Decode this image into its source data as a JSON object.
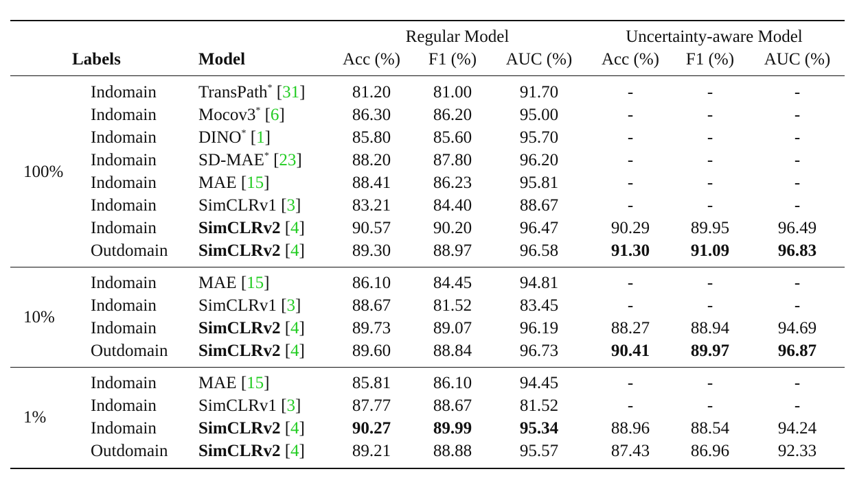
{
  "header": {
    "group1": "Regular Model",
    "group2": "Uncertainty-aware Model",
    "labels": "Labels",
    "model": "Model",
    "acc": "Acc (%)",
    "f1": "F1 (%)",
    "auc": "AUC (%)"
  },
  "sections": [
    {
      "label": "100%",
      "rows": [
        {
          "domain": "Indomain",
          "model": "TransPath",
          "star": "*",
          "cite": "31",
          "model_bold": false,
          "acc1": "81.20",
          "f11": "81.00",
          "auc1": "91.70",
          "acc2": "-",
          "f12": "-",
          "auc2": "-"
        },
        {
          "domain": "Indomain",
          "model": "Mocov3",
          "star": "*",
          "cite": "6",
          "model_bold": false,
          "acc1": "86.30",
          "f11": "86.20",
          "auc1": "95.00",
          "acc2": "-",
          "f12": "-",
          "auc2": "-"
        },
        {
          "domain": "Indomain",
          "model": "DINO",
          "star": "*",
          "cite": "1",
          "model_bold": false,
          "acc1": "85.80",
          "f11": "85.60",
          "auc1": "95.70",
          "acc2": "-",
          "f12": "-",
          "auc2": "-"
        },
        {
          "domain": "Indomain",
          "model": "SD-MAE",
          "star": "*",
          "cite": "23",
          "model_bold": false,
          "acc1": "88.20",
          "f11": "87.80",
          "auc1": "96.20",
          "acc2": "-",
          "f12": "-",
          "auc2": "-"
        },
        {
          "domain": "Indomain",
          "model": "MAE",
          "star": "",
          "cite": "15",
          "model_bold": false,
          "acc1": "88.41",
          "f11": "86.23",
          "auc1": "95.81",
          "acc2": "-",
          "f12": "-",
          "auc2": "-"
        },
        {
          "domain": "Indomain",
          "model": "SimCLRv1",
          "star": "",
          "cite": "3",
          "model_bold": false,
          "acc1": "83.21",
          "f11": "84.40",
          "auc1": "88.67",
          "acc2": "-",
          "f12": "-",
          "auc2": "-"
        },
        {
          "domain": "Indomain",
          "model": "SimCLRv2",
          "star": "",
          "cite": "4",
          "model_bold": true,
          "acc1": "90.57",
          "f11": "90.20",
          "auc1": "96.47",
          "acc2": "90.29",
          "f12": "89.95",
          "auc2": "96.49"
        },
        {
          "domain": "Outdomain",
          "model": "SimCLRv2",
          "star": "",
          "cite": "4",
          "model_bold": true,
          "acc1": "89.30",
          "f11": "88.97",
          "auc1": "96.58",
          "acc2": "91.30",
          "f12": "91.09",
          "auc2": "96.83",
          "bold_cells": [
            "acc2",
            "f12",
            "auc2"
          ]
        }
      ]
    },
    {
      "label": "10%",
      "rows": [
        {
          "domain": "Indomain",
          "model": "MAE",
          "star": "",
          "cite": "15",
          "model_bold": false,
          "acc1": "86.10",
          "f11": "84.45",
          "auc1": "94.81",
          "acc2": "-",
          "f12": "-",
          "auc2": "-"
        },
        {
          "domain": "Indomain",
          "model": "SimCLRv1",
          "star": "",
          "cite": "3",
          "model_bold": false,
          "acc1": "88.67",
          "f11": "81.52",
          "auc1": "83.45",
          "acc2": "-",
          "f12": "-",
          "auc2": "-"
        },
        {
          "domain": "Indomain",
          "model": "SimCLRv2",
          "star": "",
          "cite": "4",
          "model_bold": true,
          "acc1": "89.73",
          "f11": "89.07",
          "auc1": "96.19",
          "acc2": "88.27",
          "f12": "88.94",
          "auc2": "94.69"
        },
        {
          "domain": "Outdomain",
          "model": "SimCLRv2",
          "star": "",
          "cite": "4",
          "model_bold": true,
          "acc1": "89.60",
          "f11": "88.84",
          "auc1": "96.73",
          "acc2": "90.41",
          "f12": "89.97",
          "auc2": "96.87",
          "bold_cells": [
            "acc2",
            "f12",
            "auc2"
          ]
        }
      ]
    },
    {
      "label": "1%",
      "rows": [
        {
          "domain": "Indomain",
          "model": "MAE",
          "star": "",
          "cite": "15",
          "model_bold": false,
          "acc1": "85.81",
          "f11": "86.10",
          "auc1": "94.45",
          "acc2": "-",
          "f12": "-",
          "auc2": "-"
        },
        {
          "domain": "Indomain",
          "model": "SimCLRv1",
          "star": "",
          "cite": "3",
          "model_bold": false,
          "acc1": "87.77",
          "f11": "88.67",
          "auc1": "81.52",
          "acc2": "-",
          "f12": "-",
          "auc2": "-"
        },
        {
          "domain": "Indomain",
          "model": "SimCLRv2",
          "star": "",
          "cite": "4",
          "model_bold": true,
          "acc1": "90.27",
          "f11": "89.99",
          "auc1": "95.34",
          "acc2": "88.96",
          "f12": "88.54",
          "auc2": "94.24",
          "bold_cells": [
            "acc1",
            "f11",
            "auc1"
          ]
        },
        {
          "domain": "Outdomain",
          "model": "SimCLRv2",
          "star": "",
          "cite": "4",
          "model_bold": true,
          "acc1": "89.21",
          "f11": "88.88",
          "auc1": "95.57",
          "acc2": "87.43",
          "f12": "86.96",
          "auc2": "92.33"
        }
      ]
    }
  ],
  "colors": {
    "citation": "#22cc22",
    "text": "#111111",
    "rule": "#111111"
  }
}
